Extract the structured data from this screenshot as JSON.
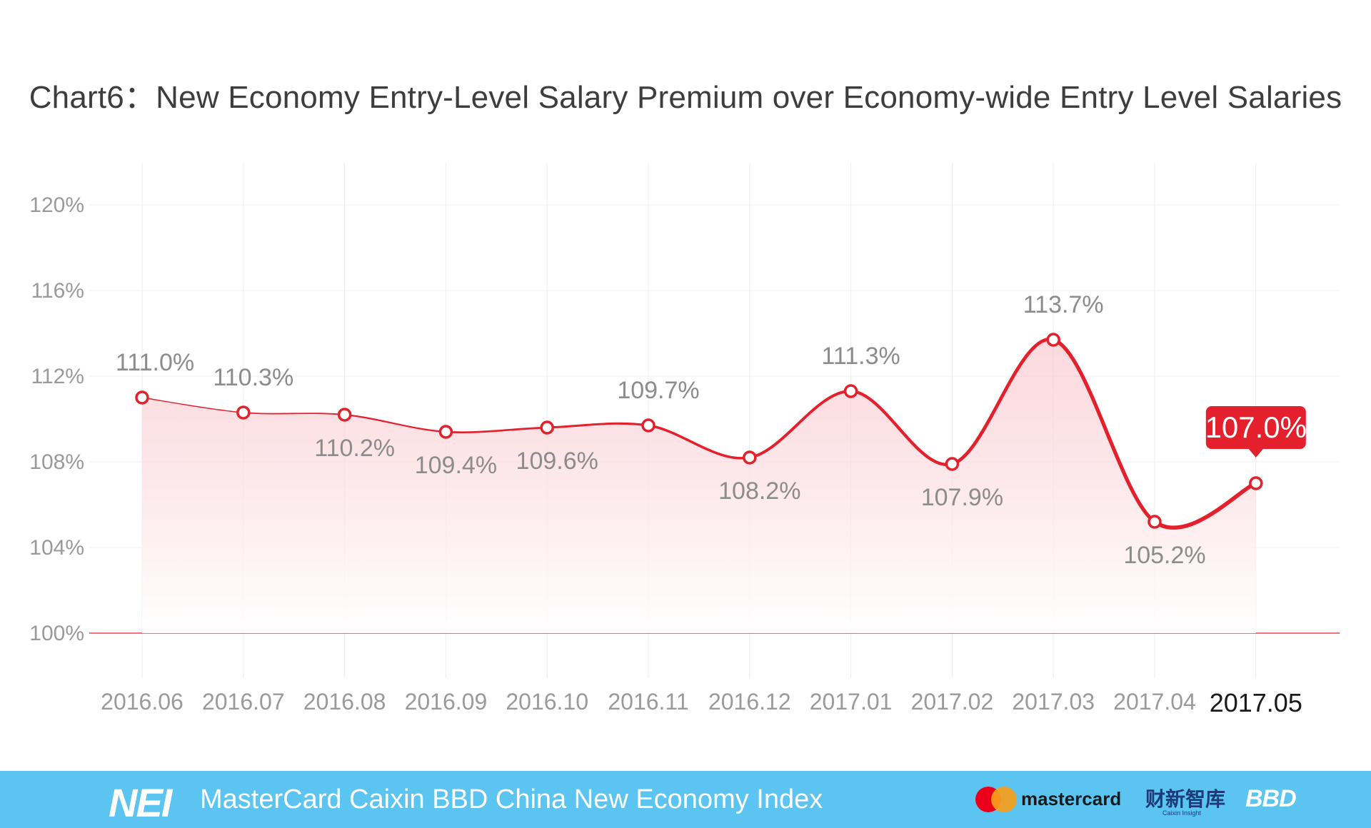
{
  "chart_data": {
    "type": "line",
    "title": "Chart6：New Economy Entry-Level Salary Premium over Economy-wide Entry Level Salaries",
    "categories": [
      "2016.06",
      "2016.07",
      "2016.08",
      "2016.09",
      "2016.10",
      "2016.11",
      "2016.12",
      "2017.01",
      "2017.02",
      "2017.03",
      "2017.04",
      "2017.05"
    ],
    "series": [
      {
        "values": [
          111.0,
          110.3,
          110.2,
          109.4,
          109.6,
          109.7,
          108.2,
          111.3,
          107.9,
          113.7,
          105.2,
          107.0
        ]
      }
    ],
    "data_labels": [
      "111.0%",
      "110.3%",
      "110.2%",
      "109.4%",
      "109.6%",
      "109.7%",
      "108.2%",
      "111.3%",
      "107.9%",
      "113.7%",
      "105.2%",
      "107.0%"
    ],
    "y_tick_labels": [
      "120%",
      "116%",
      "112%",
      "108%",
      "104%",
      "100%"
    ],
    "y_ticks": [
      120,
      116,
      112,
      108,
      104,
      100
    ],
    "ylim": [
      100,
      120
    ],
    "baseline": 100,
    "grid": true,
    "highlight_index": 11,
    "colors": {
      "line": "#e3202b",
      "area_top": "#f9c6cc",
      "grid": "#ececec",
      "tick_text": "#9a9a9a",
      "label_text": "#8c8c8c",
      "highlight_text": "#1a1a1a",
      "callout_bg": "#e3202b"
    }
  },
  "footer": {
    "logo": "NEI",
    "title": "MasterCard Caixin BBD China New Economy Index",
    "brand_mastercard": "mastercard",
    "brand_caixin": "财新智库",
    "brand_caixin_sub": "Caixin Insight",
    "brand_bbd": "BBD",
    "background": "#5bc4f1"
  }
}
